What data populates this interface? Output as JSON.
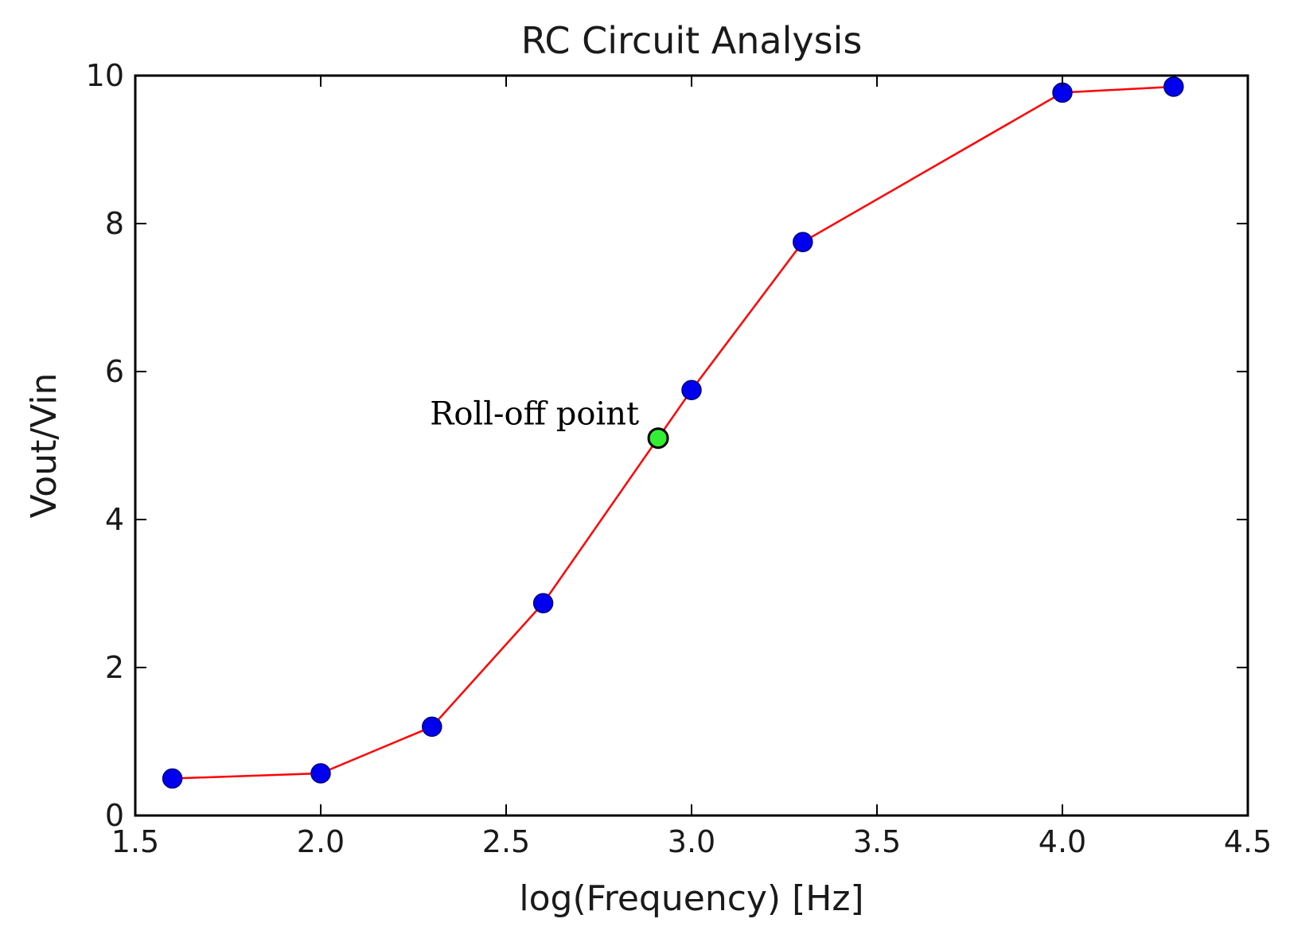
{
  "chart_data": {
    "type": "line",
    "title": "RC Circuit Analysis",
    "xlabel": "log(Frequency) [Hz]",
    "ylabel": "Vout/Vin",
    "xlim": [
      1.5,
      4.5
    ],
    "ylim": [
      0,
      10
    ],
    "xticks": [
      1.5,
      2.0,
      2.5,
      3.0,
      3.5,
      4.0,
      4.5
    ],
    "xtick_labels": [
      "1.5",
      "2.0",
      "2.5",
      "3.0",
      "3.5",
      "4.0",
      "4.5"
    ],
    "yticks": [
      0,
      2,
      4,
      6,
      8,
      10
    ],
    "ytick_labels": [
      "0",
      "2",
      "4",
      "6",
      "8",
      "10"
    ],
    "grid": false,
    "series": [
      {
        "x": [
          1.6,
          2.0,
          2.3,
          2.6,
          3.0,
          3.3,
          4.0,
          4.3
        ],
        "y": [
          0.5,
          0.57,
          1.2,
          2.87,
          5.75,
          7.75,
          9.77,
          9.85
        ],
        "line_color": "#ff0000",
        "marker_color": "#0000ee"
      }
    ],
    "annotations": [
      {
        "text": "Roll-off point",
        "x": 2.91,
        "y": 5.1,
        "marker_color": "#33ee33"
      }
    ]
  }
}
